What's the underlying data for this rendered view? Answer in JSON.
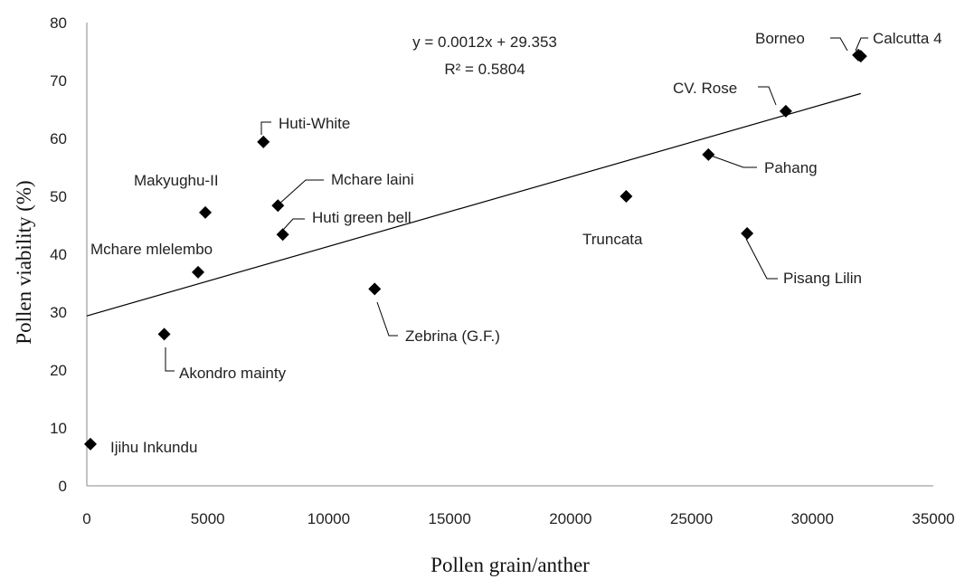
{
  "chart_data": {
    "type": "scatter",
    "title": "",
    "xlabel": "Pollen grain/anther",
    "ylabel": "Pollen viability  (%)",
    "xlim": [
      0,
      35000
    ],
    "ylim": [
      0,
      80
    ],
    "x_ticks": [
      0,
      5000,
      10000,
      15000,
      20000,
      25000,
      30000,
      35000
    ],
    "y_ticks": [
      0,
      10,
      20,
      30,
      40,
      50,
      60,
      70,
      80
    ],
    "grid": false,
    "legend": "none",
    "marker": "diamond",
    "marker_color": "#000000",
    "points": [
      {
        "label": "Ijihu Inkundu",
        "x": 150,
        "y": 7.2
      },
      {
        "label": "Akondro mainty",
        "x": 3200,
        "y": 26.2
      },
      {
        "label": "Mchare mlelembo",
        "x": 4600,
        "y": 36.9
      },
      {
        "label": "Makyughu-II",
        "x": 4900,
        "y": 47.2
      },
      {
        "label": "Huti-White",
        "x": 7300,
        "y": 59.4
      },
      {
        "label": "Mchare laini",
        "x": 7900,
        "y": 48.4
      },
      {
        "label": "Huti green bell",
        "x": 8100,
        "y": 43.4
      },
      {
        "label": "Zebrina (G.F.)",
        "x": 11900,
        "y": 34.0
      },
      {
        "label": "Truncata",
        "x": 22300,
        "y": 50.0
      },
      {
        "label": "Pahang",
        "x": 25700,
        "y": 57.2
      },
      {
        "label": "Pisang Lilin",
        "x": 27300,
        "y": 43.6
      },
      {
        "label": "CV. Rose",
        "x": 28900,
        "y": 64.7
      },
      {
        "label": "Borneo",
        "x": 31900,
        "y": 74.4
      },
      {
        "label": "Calcutta 4",
        "x": 32000,
        "y": 74.2
      }
    ],
    "trendline": {
      "slope": 0.0012,
      "intercept": 29.353,
      "x_range": [
        0,
        32000
      ],
      "equation": "y = 0.0012x + 29.353",
      "r_squared": "R² = 0.5804"
    }
  }
}
